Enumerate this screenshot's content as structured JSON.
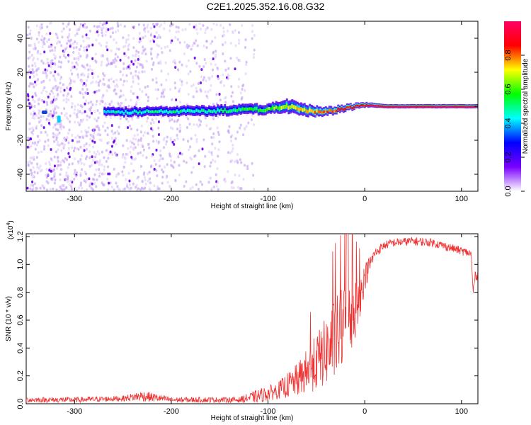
{
  "title": "C2E1.2025.352.16.08.G32",
  "chart_data": [
    {
      "type": "heatmap",
      "xlabel": "Height of straight line (km)",
      "ylabel": "Frequency (Hz)",
      "xlim": [
        -350,
        117
      ],
      "ylim": [
        -50,
        50
      ],
      "xticks": [
        -300,
        -200,
        -100,
        0,
        100
      ],
      "yticks": [
        40,
        20,
        0,
        -20,
        -40
      ],
      "colorbar": {
        "label": "Normalized spectral amplitude",
        "range": [
          0,
          1
        ],
        "ticks": [
          "0.0",
          "0.2",
          "0.4",
          "0.6",
          "0.8"
        ],
        "colors": [
          "#ffffff",
          "#7a00ff",
          "#0000ff",
          "#00ffff",
          "#00ff00",
          "#ffff00",
          "#ff0000",
          "#ff0066"
        ]
      },
      "ridge": {
        "description_points_x": [
          -270,
          -150,
          -100,
          -80,
          -60,
          -40,
          -20,
          0,
          20,
          117
        ],
        "center_freq_hz": [
          -3.5,
          -2.5,
          -1.5,
          0,
          -2.5,
          -3,
          -1,
          1,
          0,
          0
        ],
        "halfwidth_hz": [
          2.5,
          3.0,
          3.0,
          4.0,
          3.5,
          2.5,
          2.0,
          1.5,
          1.2,
          1.2
        ],
        "peak_amplitude": [
          0.45,
          0.5,
          0.6,
          0.7,
          0.75,
          0.8,
          0.85,
          0.9,
          0.95,
          0.95
        ]
      },
      "noise_region_x": [
        -350,
        -115
      ]
    },
    {
      "type": "line",
      "xlabel": "Height of straight line (km)",
      "ylabel": "SNR (10 * v/v)",
      "scale_label": "(x10",
      "scale_exponent": "4",
      "xlim": [
        -350,
        117
      ],
      "ylim": [
        0,
        1.22
      ],
      "xticks": [
        -300,
        -200,
        -100,
        0,
        100
      ],
      "yticks": [
        "1.2",
        "1.0",
        "0.8",
        "0.6",
        "0.4",
        "0.2",
        "0.0"
      ],
      "color": "#ee3333",
      "envelope": {
        "x": [
          -350,
          -300,
          -250,
          -230,
          -200,
          -130,
          -110,
          -90,
          -70,
          -55,
          -40,
          -30,
          -20,
          -15,
          -10,
          -5,
          0,
          10,
          20,
          30,
          50,
          70,
          90,
          100,
          105,
          110,
          112,
          114,
          117
        ],
        "y": [
          0.03,
          0.03,
          0.04,
          0.06,
          0.03,
          0.03,
          0.06,
          0.1,
          0.18,
          0.28,
          0.4,
          0.5,
          0.6,
          0.65,
          0.7,
          0.78,
          0.92,
          1.08,
          1.14,
          1.16,
          1.17,
          1.16,
          1.12,
          1.1,
          1.09,
          1.08,
          0.8,
          0.92,
          0.92
        ],
        "noise": [
          0.02,
          0.02,
          0.02,
          0.04,
          0.02,
          0.02,
          0.05,
          0.06,
          0.12,
          0.18,
          0.25,
          0.3,
          0.3,
          0.28,
          0.22,
          0.15,
          0.1,
          0.04,
          0.03,
          0.03,
          0.03,
          0.03,
          0.03,
          0.03,
          0.03,
          0.03,
          0.05,
          0.03,
          0.03
        ]
      }
    }
  ]
}
